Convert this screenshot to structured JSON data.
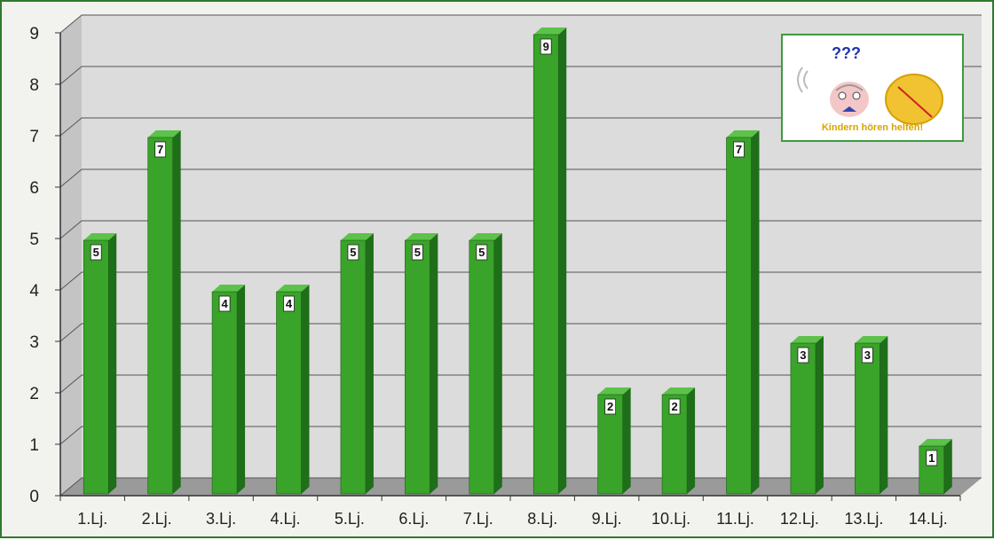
{
  "chart_data": {
    "type": "bar",
    "title": "",
    "xlabel": "",
    "ylabel": "",
    "categories": [
      "1.Lj.",
      "2.Lj.",
      "3.Lj.",
      "4.Lj.",
      "5.Lj.",
      "6.Lj.",
      "7.Lj.",
      "8.Lj.",
      "9.Lj.",
      "10.Lj.",
      "11.Lj.",
      "12.Lj.",
      "13.Lj.",
      "14.Lj."
    ],
    "values": [
      5,
      7,
      4,
      4,
      5,
      5,
      5,
      9,
      2,
      2,
      7,
      3,
      3,
      1
    ],
    "ylim": [
      0,
      9
    ],
    "yticks": [
      0,
      1,
      2,
      3,
      4,
      5,
      6,
      7,
      8,
      9
    ],
    "grid": true,
    "bar_color": "#3aa32a",
    "bar_side_color": "#1f6e1a",
    "bar_top_color": "#5cc24a",
    "data_labels": true
  },
  "logo": {
    "tagline": "Kindern hören helfen!",
    "question_marks": "???"
  }
}
